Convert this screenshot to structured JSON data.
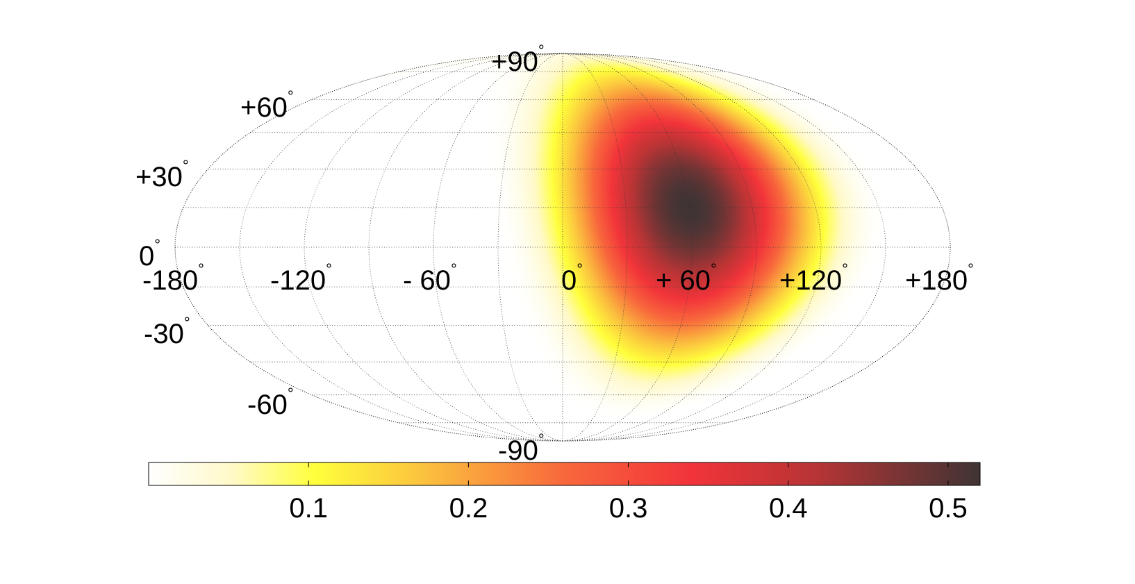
{
  "chart_data": {
    "type": "heatmap",
    "projection": "Mollweide",
    "title": "",
    "xlabel": "",
    "ylabel": "",
    "longitude_range": [
      -180,
      180
    ],
    "latitude_range": [
      -90,
      90
    ],
    "grid": true,
    "grid_style": "dotted",
    "hotspot": {
      "longitude": 60,
      "latitude": 15,
      "value": 0.52
    },
    "value_range": [
      0,
      0.52
    ],
    "longitude_ticks": [
      {
        "value": -180,
        "label": "-180"
      },
      {
        "value": -120,
        "label": "-120"
      },
      {
        "value": -60,
        "label": "- 60"
      },
      {
        "value": 0,
        "label": "0"
      },
      {
        "value": 60,
        "label": "+ 60"
      },
      {
        "value": 120,
        "label": "+120"
      },
      {
        "value": 180,
        "label": "+180"
      }
    ],
    "latitude_ticks": [
      {
        "value": 90,
        "label": "+90"
      },
      {
        "value": 60,
        "label": "+60"
      },
      {
        "value": 30,
        "label": "+30"
      },
      {
        "value": 0,
        "label": "0"
      },
      {
        "value": -30,
        "label": "-30"
      },
      {
        "value": -60,
        "label": "-60"
      },
      {
        "value": -90,
        "label": "-90"
      }
    ],
    "degree_symbol": "°",
    "colorbar": {
      "orientation": "horizontal",
      "location": "bottom",
      "range": [
        0,
        0.52
      ],
      "ticks": [
        {
          "value": 0.1,
          "label": "0.1"
        },
        {
          "value": 0.2,
          "label": "0.2"
        },
        {
          "value": 0.3,
          "label": "0.3"
        },
        {
          "value": 0.4,
          "label": "0.4"
        },
        {
          "value": 0.5,
          "label": "0.5"
        }
      ],
      "colormap": [
        {
          "stop": 0.0,
          "color": "#ffffff"
        },
        {
          "stop": 0.1,
          "color": "#fff9c8"
        },
        {
          "stop": 0.2,
          "color": "#ffff3c"
        },
        {
          "stop": 0.33,
          "color": "#fbc23e"
        },
        {
          "stop": 0.5,
          "color": "#f8683c"
        },
        {
          "stop": 0.65,
          "color": "#f2343a"
        },
        {
          "stop": 0.8,
          "color": "#b83435"
        },
        {
          "stop": 1.0,
          "color": "#3f3434"
        }
      ]
    }
  }
}
